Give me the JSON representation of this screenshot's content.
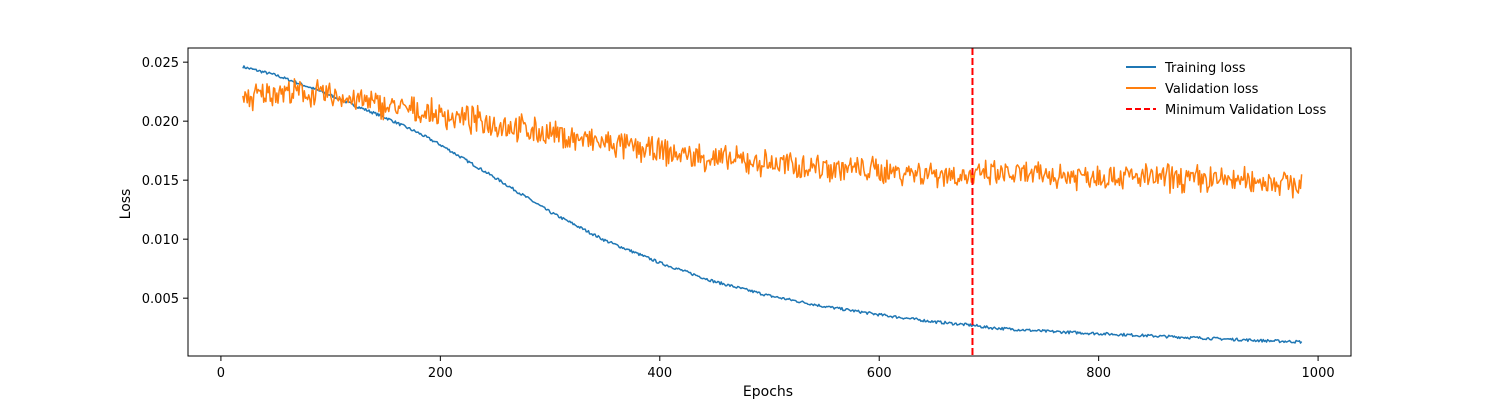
{
  "chart_data": {
    "type": "line",
    "title": "",
    "xlabel": "Epochs",
    "ylabel": "Loss",
    "xlim": [
      -30,
      1030
    ],
    "ylim": [
      0.0001,
      0.0262
    ],
    "x_ticks": [
      0,
      200,
      400,
      600,
      800,
      1000
    ],
    "y_ticks": [
      0.005,
      0.01,
      0.015,
      0.02,
      0.025
    ],
    "y_tick_labels": [
      "0.005",
      "0.010",
      "0.015",
      "0.020",
      "0.025"
    ],
    "x_tick_labels": [
      "0",
      "200",
      "400",
      "600",
      "800",
      "1000"
    ],
    "grid": false,
    "legend_position": "top-right",
    "series": [
      {
        "name": "Training loss",
        "color": "#1f77b4",
        "x": [
          20,
          50,
          80,
          100,
          120,
          150,
          180,
          200,
          250,
          300,
          350,
          400,
          450,
          500,
          550,
          600,
          650,
          685,
          700,
          750,
          800,
          850,
          900,
          950,
          985
        ],
        "values": [
          0.0246,
          0.0239,
          0.0229,
          0.0222,
          0.0214,
          0.0203,
          0.019,
          0.018,
          0.0152,
          0.0123,
          0.0099,
          0.008,
          0.0064,
          0.0052,
          0.0043,
          0.0036,
          0.003,
          0.0027,
          0.0025,
          0.0022,
          0.002,
          0.0018,
          0.0016,
          0.0014,
          0.0013
        ]
      },
      {
        "name": "Validation loss",
        "color": "#ff7f0e",
        "x": [
          20,
          50,
          100,
          150,
          200,
          250,
          300,
          350,
          400,
          450,
          500,
          550,
          600,
          650,
          685,
          700,
          750,
          800,
          850,
          900,
          950,
          985
        ],
        "values": [
          0.0218,
          0.0225,
          0.0222,
          0.0213,
          0.0205,
          0.0198,
          0.0189,
          0.0181,
          0.0174,
          0.0168,
          0.0164,
          0.0161,
          0.0158,
          0.0156,
          0.0153,
          0.0155,
          0.0154,
          0.0154,
          0.0152,
          0.0151,
          0.0149,
          0.0147
        ],
        "noise_amplitude": 0.0009
      }
    ],
    "vertical_line": {
      "name": "Minimum Validation Loss",
      "x": 685,
      "color": "#ff0000",
      "style": "dashed"
    }
  }
}
